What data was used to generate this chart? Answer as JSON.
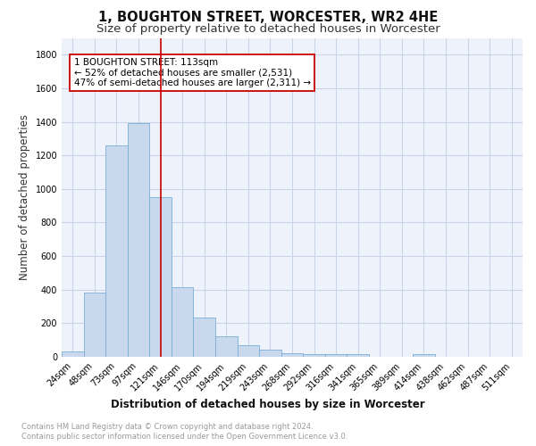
{
  "title": "1, BOUGHTON STREET, WORCESTER, WR2 4HE",
  "subtitle": "Size of property relative to detached houses in Worcester",
  "xlabel": "Distribution of detached houses by size in Worcester",
  "ylabel": "Number of detached properties",
  "bar_color": "#c9d9ed",
  "bar_edgecolor": "#7aadd4",
  "grid_color": "#c8d4e8",
  "background_color": "#eef2fa",
  "bins": [
    "24sqm",
    "48sqm",
    "73sqm",
    "97sqm",
    "121sqm",
    "146sqm",
    "170sqm",
    "194sqm",
    "219sqm",
    "243sqm",
    "268sqm",
    "292sqm",
    "316sqm",
    "341sqm",
    "365sqm",
    "389sqm",
    "414sqm",
    "438sqm",
    "462sqm",
    "487sqm",
    "511sqm"
  ],
  "values": [
    30,
    385,
    1260,
    1395,
    950,
    415,
    235,
    120,
    70,
    45,
    20,
    15,
    15,
    15,
    0,
    0,
    15,
    0,
    0,
    0,
    0
  ],
  "ylim": [
    0,
    1900
  ],
  "yticks": [
    0,
    200,
    400,
    600,
    800,
    1000,
    1200,
    1400,
    1600,
    1800
  ],
  "vline_x": 4.0,
  "vline_color": "#cc0000",
  "annotation_text": "1 BOUGHTON STREET: 113sqm\n← 52% of detached houses are smaller (2,531)\n47% of semi-detached houses are larger (2,311) →",
  "annotation_box_color": "#ffffff",
  "annotation_box_edgecolor": "#cc0000",
  "footer_line1": "Contains HM Land Registry data © Crown copyright and database right 2024.",
  "footer_line2": "Contains public sector information licensed under the Open Government Licence v3.0.",
  "footer_color": "#999999",
  "title_fontsize": 10.5,
  "subtitle_fontsize": 9.5,
  "axis_label_fontsize": 8.5,
  "tick_fontsize": 7,
  "annotation_fontsize": 7.5
}
